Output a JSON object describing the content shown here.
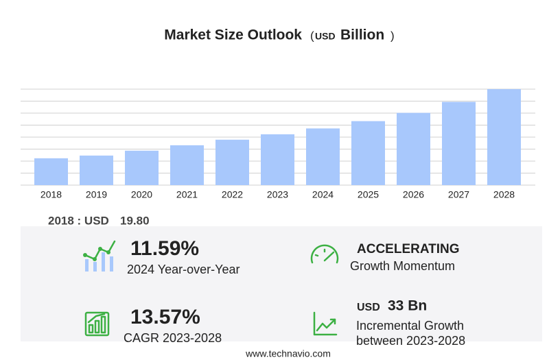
{
  "chart_data": {
    "type": "bar",
    "title": "Market Size Outlook",
    "unit": {
      "open": "(",
      "currency": "USD",
      "scale": "Billion",
      "close": ")"
    },
    "categories": [
      "2018",
      "2019",
      "2020",
      "2021",
      "2022",
      "2023",
      "2024",
      "2025",
      "2026",
      "2027",
      "2028"
    ],
    "values": [
      19.8,
      21.8,
      25.4,
      29.4,
      33.5,
      37.5,
      41.8,
      47.2,
      53.3,
      61.4,
      70.8
    ],
    "color": "#a8c8fc"
  },
  "highlight": {
    "label": "2018 : USD",
    "value": 19.8,
    "value_label": "19.80"
  },
  "kpis": [
    {
      "value": "11.59%",
      "caption": "2024 Year-over-Year"
    },
    {
      "value": "ACCELERATING",
      "caption": "Growth Momentum"
    },
    {
      "value": "13.57%",
      "caption": "CAGR 2023-2028"
    },
    {
      "currency": "USD",
      "value": "33 Bn",
      "caption": "Incremental Growth",
      "caption2": "between 2023-2028"
    }
  ],
  "footer": "www.technavio.com"
}
